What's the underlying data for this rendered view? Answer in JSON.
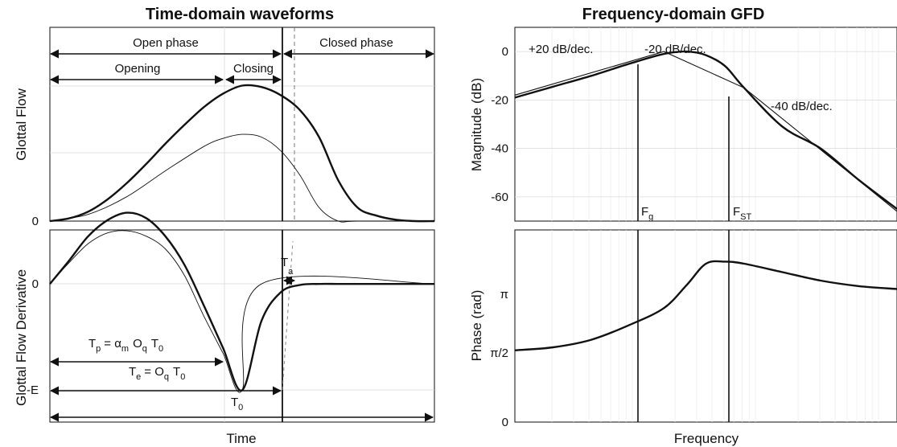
{
  "chart_data": [
    {
      "type": "line",
      "title": "Time-domain waveforms",
      "panels": [
        {
          "ylabel": "Glottal Flow",
          "xlabel": "",
          "yticks": [
            "0"
          ],
          "series": [
            {
              "style": "thick",
              "x": [
                0,
                0.05,
                0.1,
                0.15,
                0.2,
                0.25,
                0.3,
                0.35,
                0.4,
                0.45,
                0.5,
                0.55,
                0.6,
                0.65,
                0.7,
                0.75,
                0.8,
                0.85,
                0.9,
                0.95,
                1.0
              ],
              "y": [
                0,
                0.02,
                0.07,
                0.16,
                0.28,
                0.42,
                0.57,
                0.71,
                0.84,
                0.94,
                1.0,
                0.99,
                0.93,
                0.82,
                0.62,
                0.3,
                0.1,
                0.04,
                0.01,
                0.0,
                0.0
              ]
            },
            {
              "style": "thin",
              "x": [
                0,
                0.1,
                0.2,
                0.3,
                0.4,
                0.45,
                0.5,
                0.55,
                0.6,
                0.65,
                0.7,
                0.75,
                0.8,
                1.0
              ],
              "y": [
                0,
                0.05,
                0.18,
                0.37,
                0.55,
                0.61,
                0.64,
                0.62,
                0.52,
                0.34,
                0.1,
                0.0,
                0.0,
                0.0
              ]
            }
          ]
        },
        {
          "ylabel": "Glottal Flow Derivative",
          "xlabel": "Time",
          "yticks": [
            "0",
            "-E"
          ],
          "series": [
            {
              "style": "thick",
              "x": [
                0,
                0.05,
                0.1,
                0.15,
                0.2,
                0.25,
                0.3,
                0.35,
                0.4,
                0.45,
                0.5,
                0.55,
                0.6,
                0.65,
                0.7,
                0.75,
                0.8,
                0.85,
                0.9,
                0.95,
                1.0
              ],
              "y": [
                0,
                0.22,
                0.45,
                0.6,
                0.67,
                0.62,
                0.45,
                0.18,
                -0.2,
                -0.6,
                -1.0,
                -0.35,
                -0.08,
                -0.01,
                0,
                0,
                0,
                0,
                0,
                0,
                0
              ]
            },
            {
              "style": "thin",
              "x": [
                0,
                0.05,
                0.1,
                0.15,
                0.2,
                0.25,
                0.3,
                0.35,
                0.4,
                0.45,
                0.5,
                0.55,
                1.0
              ],
              "y": [
                0,
                0.2,
                0.38,
                0.48,
                0.5,
                0.45,
                0.33,
                0.08,
                -0.3,
                -0.65,
                -1.0,
                0,
                0
              ]
            }
          ]
        }
      ],
      "annotations": {
        "open_phase": "Open phase",
        "closed_phase": "Closed phase",
        "opening": "Opening",
        "closing": "Closing",
        "ta": "T",
        "ta_sub": "a",
        "tp_main": "T",
        "tp_sub": "p",
        "tp_eq": "= α",
        "tp_m": "m",
        "tp_oq": "O",
        "tp_q": "q",
        "tp_t0": "T",
        "tp_0": "0",
        "te_main": "T",
        "te_sub": "e",
        "te_eq": "= O",
        "te_q": "q",
        "te_t": "T",
        "te_0": "0",
        "t0_main": "T",
        "t0_sub": "0"
      }
    },
    {
      "type": "line",
      "title": "Frequency-domain GFD",
      "panels": [
        {
          "ylabel": "Magnitude (dB)",
          "xlabel": "",
          "xscale": "log",
          "ylim": [
            -70,
            10
          ],
          "yticks": [
            0,
            -20,
            -40,
            -60
          ],
          "series": [
            {
              "name": "asymptotes",
              "style": "thin",
              "x": [
                0,
                0.39,
                0.6,
                1.0
              ],
              "y": [
                -18,
                0,
                -15,
                -66
              ]
            },
            {
              "name": "GFD magnitude",
              "style": "thick",
              "x": [
                0,
                0.1,
                0.2,
                0.3,
                0.39,
                0.45,
                0.5,
                0.55,
                0.6,
                0.7,
                0.8,
                0.9,
                1.0
              ],
              "y": [
                -19,
                -14.5,
                -10,
                -5,
                -1,
                0,
                -1.5,
                -6,
                -15,
                -31,
                -40,
                -53,
                -65
              ]
            }
          ],
          "annotations": [
            "+20 dB/dec.",
            "-20 dB/dec.",
            "-40 dB/dec."
          ],
          "markers": [
            {
              "label": "F",
              "sub": "g"
            },
            {
              "label": "F",
              "sub": "ST"
            }
          ]
        },
        {
          "ylabel": "Phase (rad)",
          "xlabel": "Frequency",
          "xscale": "log",
          "ylim": [
            0,
            4.55
          ],
          "yticks": [
            "0",
            "π/2",
            "π"
          ],
          "series": [
            {
              "name": "GFD phase",
              "style": "thick",
              "x": [
                0,
                0.1,
                0.2,
                0.3,
                0.39,
                0.45,
                0.5,
                0.55,
                0.6,
                0.7,
                0.8,
                0.9,
                1.0
              ],
              "y": [
                1.7,
                1.77,
                1.95,
                2.3,
                2.7,
                3.25,
                3.75,
                3.8,
                3.75,
                3.55,
                3.35,
                3.22,
                3.15
              ]
            }
          ]
        }
      ]
    }
  ]
}
